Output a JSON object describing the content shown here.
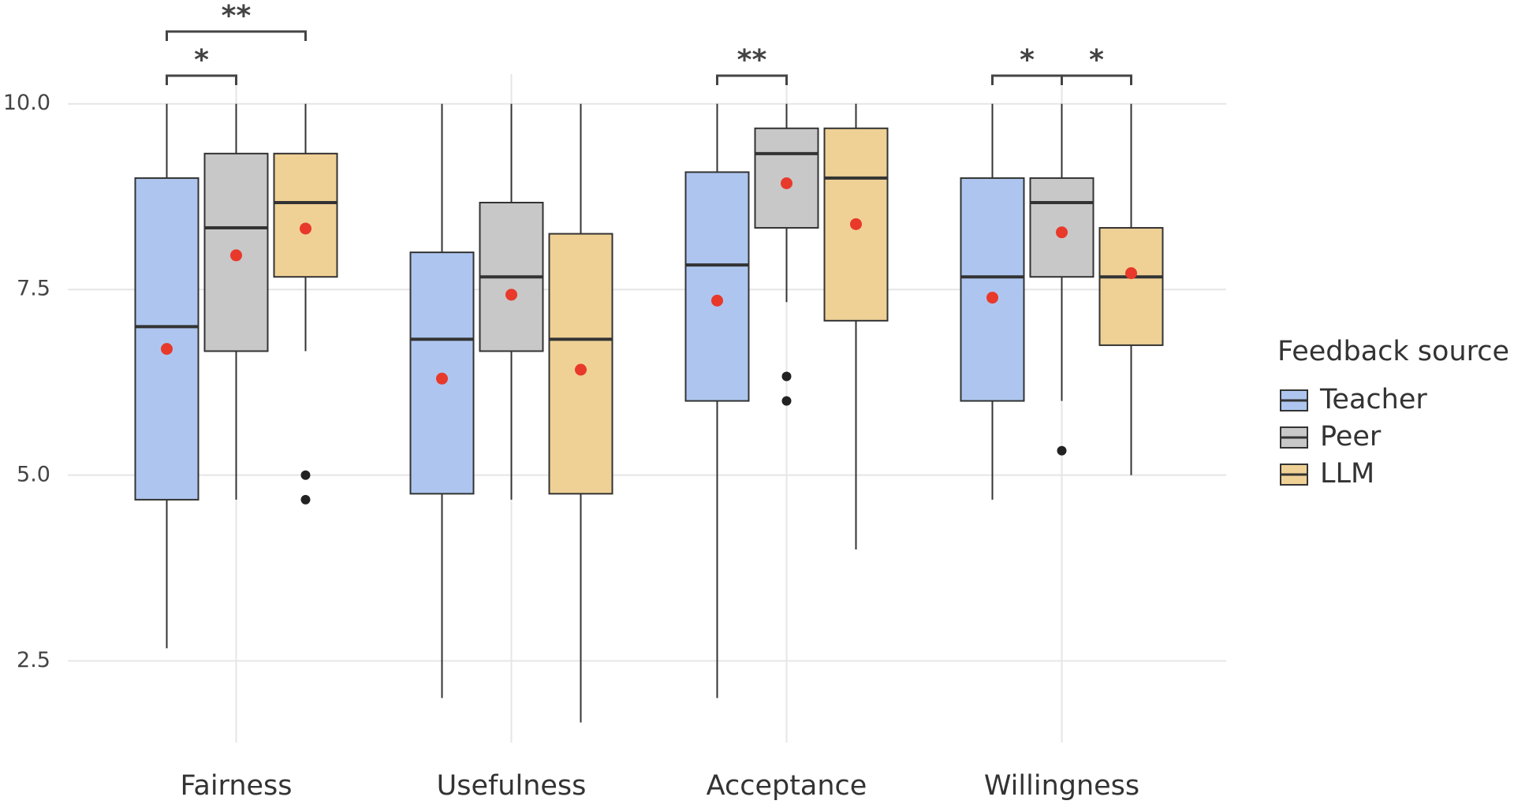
{
  "chart_data": {
    "type": "box",
    "categories": [
      "Fairness",
      "Usefulness",
      "Acceptance",
      "Willingness"
    ],
    "ylim": [
      1.4,
      10.4
    ],
    "yticks": [
      {
        "value": 2.5,
        "label": "2.5"
      },
      {
        "value": 5,
        "label": "5.0"
      },
      {
        "value": 7.5,
        "label": "7.5"
      },
      {
        "value": 10,
        "label": "10.0"
      }
    ],
    "grid": true,
    "legend_title": "Feedback source",
    "legend_position": "right",
    "mean_color": "#e8392b",
    "series": [
      {
        "name": "Teacher",
        "color": "#aec6ef",
        "low": [
          2.67,
          2.0,
          2.0,
          4.67
        ],
        "q1": [
          4.67,
          4.75,
          6.0,
          6.0
        ],
        "median": [
          7.0,
          6.83,
          7.83,
          7.67
        ],
        "q3": [
          9.0,
          8.0,
          9.08,
          9.0
        ],
        "high": [
          10,
          10,
          10,
          10
        ],
        "mean": [
          6.7,
          6.3,
          7.35,
          7.39
        ],
        "outliers": [
          [],
          [],
          [],
          []
        ]
      },
      {
        "name": "Peer",
        "color": "#c8c8c8",
        "low": [
          4.67,
          4.67,
          7.33,
          6.0
        ],
        "q1": [
          6.67,
          6.67,
          8.33,
          7.67
        ],
        "median": [
          8.33,
          7.67,
          9.33,
          8.67
        ],
        "q3": [
          9.33,
          8.67,
          9.67,
          9.0
        ],
        "high": [
          10,
          10,
          10,
          10
        ],
        "mean": [
          7.96,
          7.43,
          8.93,
          8.27
        ],
        "outliers": [
          [],
          [],
          [
            6.33,
            6.0
          ],
          [
            5.33
          ]
        ]
      },
      {
        "name": "LLM",
        "color": "#efd196",
        "low": [
          6.67,
          1.67,
          4.0,
          5.0
        ],
        "q1": [
          7.67,
          4.75,
          7.08,
          6.75
        ],
        "median": [
          8.67,
          6.83,
          9.0,
          7.67
        ],
        "q3": [
          9.33,
          8.25,
          9.67,
          8.33
        ],
        "high": [
          10,
          10,
          10,
          10
        ],
        "mean": [
          8.32,
          6.42,
          8.38,
          7.72
        ],
        "outliers": [
          [
            5.0,
            4.67
          ],
          [],
          [],
          []
        ]
      }
    ],
    "significance": [
      {
        "category": 0,
        "series": [
          0,
          1
        ],
        "label": "*"
      },
      {
        "category": 0,
        "series": [
          0,
          2
        ],
        "label": "**"
      },
      {
        "category": 2,
        "series": [
          0,
          1
        ],
        "label": "**"
      },
      {
        "category": 3,
        "series": [
          0,
          1
        ],
        "label": "*"
      },
      {
        "category": 3,
        "series": [
          1,
          2
        ],
        "label": "*"
      }
    ]
  }
}
